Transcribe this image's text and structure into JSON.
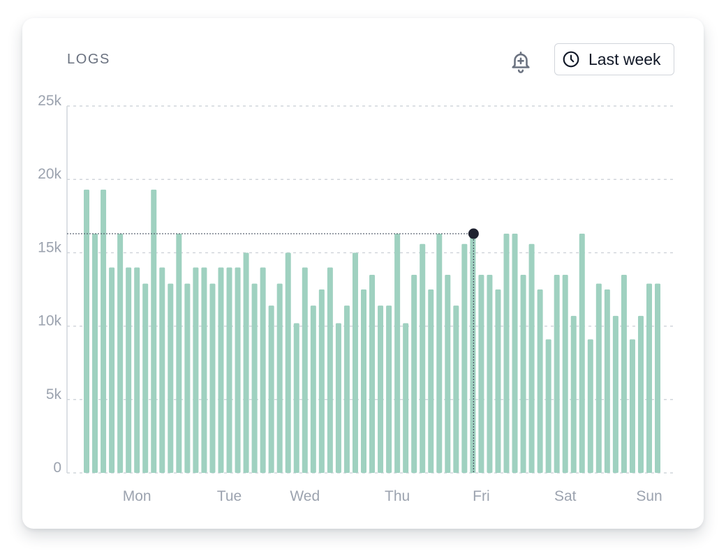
{
  "card": {
    "title": "LOGS",
    "alert_icon": "bell-plus-icon",
    "range_icon": "clock-icon",
    "range_label": "Last week"
  },
  "colors": {
    "bar": "#9fd1c0",
    "grid": "#d1d5db",
    "axis_text": "#9ca3af",
    "marker": "#1f2230",
    "title": "#6b7280"
  },
  "chart_data": {
    "type": "bar",
    "title": "LOGS",
    "xlabel": "",
    "ylabel": "",
    "ylim": [
      0,
      25000
    ],
    "grid": true,
    "yticks": [
      {
        "value": 0,
        "label": "0"
      },
      {
        "value": 5000,
        "label": "5k"
      },
      {
        "value": 10000,
        "label": "10k"
      },
      {
        "value": 15000,
        "label": "15k"
      },
      {
        "value": 20000,
        "label": "20k"
      },
      {
        "value": 25000,
        "label": "25k"
      }
    ],
    "xticks": [
      {
        "label": "Mon",
        "index": 6
      },
      {
        "label": "Tue",
        "index": 17
      },
      {
        "label": "Wed",
        "index": 26
      },
      {
        "label": "Thu",
        "index": 37
      },
      {
        "label": "Fri",
        "index": 47
      },
      {
        "label": "Sat",
        "index": 57
      },
      {
        "label": "Sun",
        "index": 67
      }
    ],
    "values": [
      19300,
      16300,
      19300,
      14000,
      16300,
      14000,
      14000,
      12900,
      19300,
      14000,
      12900,
      16300,
      12900,
      14000,
      14000,
      12900,
      14000,
      14000,
      14000,
      15000,
      12900,
      14000,
      11400,
      12900,
      15000,
      10200,
      14000,
      11400,
      12500,
      14000,
      10200,
      11400,
      15000,
      12500,
      13500,
      11400,
      11400,
      16300,
      10200,
      13500,
      15600,
      12500,
      16300,
      13500,
      11400,
      15600,
      16300,
      13500,
      13500,
      12500,
      16300,
      16300,
      13500,
      15600,
      12500,
      9100,
      13500,
      13500,
      10700,
      16300,
      9100,
      12900,
      12500,
      10700,
      13500,
      9100,
      10700,
      12900,
      12900
    ],
    "highlight": {
      "index": 46,
      "value": 16300
    }
  }
}
